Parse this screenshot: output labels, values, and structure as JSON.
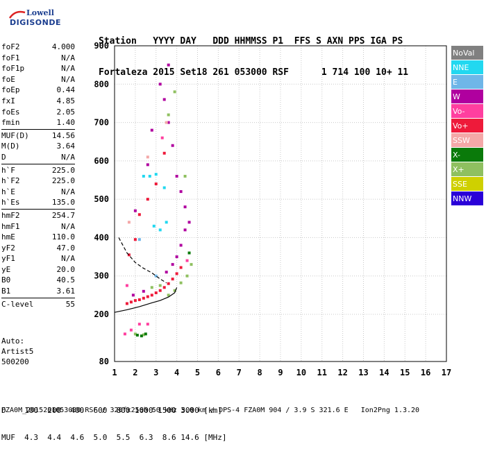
{
  "logo": {
    "line1": "Lowell",
    "line2": "DIGISONDE"
  },
  "header": {
    "line1": "Station   YYYY DAY   DDD HHMMSS P1  FFS S AXN PPS IGA PS",
    "line2": "Fortaleza 2015 Set18 261 053000 RSF      1 714 100 10+ 11"
  },
  "params": {
    "group1": [
      {
        "k": "foF2",
        "v": "4.000"
      },
      {
        "k": "foF1",
        "v": "N/A"
      },
      {
        "k": "foF1p",
        "v": "N/A"
      },
      {
        "k": "foE",
        "v": "N/A"
      },
      {
        "k": "foEp",
        "v": "0.44"
      },
      {
        "k": "fxI",
        "v": "4.85"
      },
      {
        "k": "foEs",
        "v": "2.05"
      },
      {
        "k": "fmin",
        "v": "1.40"
      }
    ],
    "group2": [
      {
        "k": "MUF(D)",
        "v": "14.56"
      },
      {
        "k": "M(D)",
        "v": "3.64"
      },
      {
        "k": "D",
        "v": "N/A"
      }
    ],
    "group3": [
      {
        "k": "h`F",
        "v": "225.0"
      },
      {
        "k": "h`F2",
        "v": "225.0"
      },
      {
        "k": "h`E",
        "v": "N/A"
      },
      {
        "k": "h`Es",
        "v": "135.0"
      }
    ],
    "group4": [
      {
        "k": "hmF2",
        "v": "254.7"
      },
      {
        "k": "hmF1",
        "v": "N/A"
      },
      {
        "k": "hmE",
        "v": "110.0"
      },
      {
        "k": "yF2",
        "v": "47.0"
      },
      {
        "k": "yF1",
        "v": "N/A"
      },
      {
        "k": "yE",
        "v": "20.0"
      },
      {
        "k": "B0",
        "v": "40.5"
      },
      {
        "k": "B1",
        "v": "3.61"
      }
    ],
    "group5": [
      {
        "k": "C-level",
        "v": "55"
      }
    ]
  },
  "auto": {
    "line1": "Auto:",
    "line2": "Artist5",
    "line3": "500200"
  },
  "legend": [
    {
      "label": "NoVal",
      "color": "#808080"
    },
    {
      "label": "NNE",
      "color": "#22d8f0"
    },
    {
      "label": "E",
      "color": "#6fb6e8"
    },
    {
      "label": "W",
      "color": "#b0009f"
    },
    {
      "label": "Vo-",
      "color": "#ff3f9f"
    },
    {
      "label": "Vo+",
      "color": "#ee1a3a"
    },
    {
      "label": "SSW",
      "color": "#f4a8a8"
    },
    {
      "label": "X-",
      "color": "#0a7a0a"
    },
    {
      "label": "X+",
      "color": "#8fc060"
    },
    {
      "label": "SSE",
      "color": "#cfd000"
    },
    {
      "label": "NNW",
      "color": "#2a00d8"
    }
  ],
  "bottom": {
    "dline": "D    100  200  400  600  800 1000 1500 3000 [km]",
    "mufline": "MUF  4.3  4.4  4.6  5.0  5.5  6.3  8.6 14.6 [MHz]"
  },
  "footer": "FZA0M_2015261053000.RSF / 320fx256h 50 kHz 5.0 km / DPS-4 FZA0M 904 / 3.9 S 321.6 E   Ion2Png 1.3.20",
  "chart_data": {
    "type": "scatter",
    "xlim": [
      1,
      17
    ],
    "ylim": [
      80,
      900
    ],
    "xticks": [
      1,
      2,
      3,
      4,
      5,
      6,
      7,
      8,
      9,
      10,
      11,
      12,
      13,
      14,
      15,
      16,
      17
    ],
    "yticks": [
      80,
      200,
      300,
      400,
      500,
      600,
      700,
      800,
      900
    ],
    "grid": true,
    "legend_position": "right",
    "series": [
      {
        "name": "Vo+",
        "color": "#ee1a3a",
        "points": [
          [
            1.6,
            228
          ],
          [
            1.8,
            232
          ],
          [
            2.0,
            236
          ],
          [
            2.2,
            238
          ],
          [
            2.4,
            242
          ],
          [
            2.6,
            246
          ],
          [
            2.8,
            250
          ],
          [
            3.0,
            256
          ],
          [
            3.2,
            262
          ],
          [
            3.4,
            270
          ],
          [
            3.6,
            280
          ],
          [
            3.8,
            292
          ],
          [
            4.0,
            306
          ],
          [
            4.2,
            322
          ],
          [
            1.7,
            355
          ],
          [
            2.2,
            460
          ],
          [
            2.6,
            500
          ],
          [
            3.0,
            540
          ],
          [
            2.0,
            395
          ],
          [
            3.4,
            620
          ]
        ]
      },
      {
        "name": "W",
        "color": "#b0009f",
        "points": [
          [
            3.5,
            310
          ],
          [
            3.8,
            330
          ],
          [
            4.0,
            350
          ],
          [
            4.2,
            380
          ],
          [
            4.4,
            420
          ],
          [
            4.6,
            440
          ],
          [
            4.4,
            480
          ],
          [
            4.2,
            520
          ],
          [
            4.0,
            560
          ],
          [
            3.8,
            640
          ],
          [
            3.6,
            700
          ],
          [
            3.4,
            760
          ],
          [
            3.2,
            800
          ],
          [
            3.6,
            850
          ],
          [
            2.6,
            590
          ],
          [
            2.0,
            470
          ],
          [
            2.8,
            680
          ],
          [
            1.9,
            250
          ],
          [
            2.4,
            260
          ]
        ]
      },
      {
        "name": "X+",
        "color": "#8fc060",
        "points": [
          [
            3.6,
            250
          ],
          [
            3.9,
            262
          ],
          [
            4.2,
            282
          ],
          [
            4.5,
            300
          ],
          [
            4.7,
            330
          ],
          [
            2.8,
            270
          ],
          [
            3.2,
            275
          ],
          [
            2.0,
            150
          ],
          [
            2.4,
            148
          ],
          [
            4.4,
            560
          ],
          [
            3.6,
            720
          ],
          [
            3.9,
            780
          ]
        ]
      },
      {
        "name": "X-",
        "color": "#0a7a0a",
        "points": [
          [
            2.1,
            147
          ],
          [
            2.3,
            145
          ],
          [
            2.5,
            150
          ],
          [
            4.6,
            360
          ]
        ]
      },
      {
        "name": "NNE",
        "color": "#22d8f0",
        "points": [
          [
            2.4,
            560
          ],
          [
            2.7,
            560
          ],
          [
            3.0,
            565
          ],
          [
            3.4,
            530
          ],
          [
            3.2,
            420
          ],
          [
            3.5,
            440
          ],
          [
            2.9,
            430
          ]
        ]
      },
      {
        "name": "Vo-",
        "color": "#ff3f9f",
        "points": [
          [
            1.5,
            150
          ],
          [
            1.8,
            160
          ],
          [
            2.2,
            175
          ],
          [
            2.6,
            175
          ],
          [
            1.6,
            275
          ],
          [
            4.5,
            340
          ],
          [
            3.3,
            660
          ]
        ]
      },
      {
        "name": "E",
        "color": "#6fb6e8",
        "points": [
          [
            2.2,
            395
          ],
          [
            3.0,
            300
          ]
        ]
      },
      {
        "name": "SSW",
        "color": "#f4a8a8",
        "points": [
          [
            1.7,
            440
          ],
          [
            2.6,
            610
          ],
          [
            3.5,
            700
          ]
        ]
      }
    ],
    "curves": [
      {
        "name": "profile",
        "style": "solid",
        "points": [
          [
            1.0,
            205
          ],
          [
            1.6,
            212
          ],
          [
            2.2,
            220
          ],
          [
            2.8,
            230
          ],
          [
            3.2,
            236
          ],
          [
            3.6,
            245
          ],
          [
            3.9,
            256
          ],
          [
            4.0,
            270
          ]
        ]
      },
      {
        "name": "trace",
        "style": "dashed",
        "points": [
          [
            1.2,
            400
          ],
          [
            1.6,
            360
          ],
          [
            2.0,
            335
          ],
          [
            2.4,
            320
          ],
          [
            2.8,
            308
          ],
          [
            3.2,
            292
          ],
          [
            3.5,
            282
          ]
        ]
      }
    ]
  }
}
